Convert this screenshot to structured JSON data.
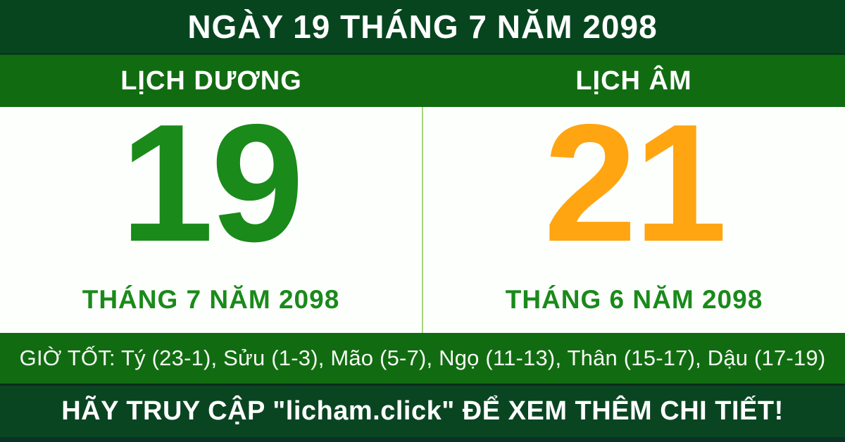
{
  "top": {
    "title": "NGÀY 19 THÁNG 7 NĂM 2098"
  },
  "calendar": {
    "solar": {
      "header": "LỊCH DƯƠNG",
      "day": "19",
      "month_year": "THÁNG 7 NĂM 2098"
    },
    "lunar": {
      "header": "LỊCH ÂM",
      "day": "21",
      "month_year": "THÁNG 6 NĂM 2098"
    }
  },
  "good_hours": {
    "text": "GIỜ TỐT: Tý (23-1), Sửu (1-3), Mão (5-7), Ngọ (11-13), Thân (15-17), Dậu (17-19)"
  },
  "footer": {
    "cta": "HÃY TRUY CẬP \"licham.click\" ĐỂ XEM THÊM CHI TIẾT!"
  },
  "colors": {
    "dark_green": "#07451f",
    "bright_green": "#116c11",
    "day_green": "#1a8a1a",
    "day_orange": "#ffa512",
    "divider_light_green": "#a8d478",
    "white": "#ffffff"
  }
}
